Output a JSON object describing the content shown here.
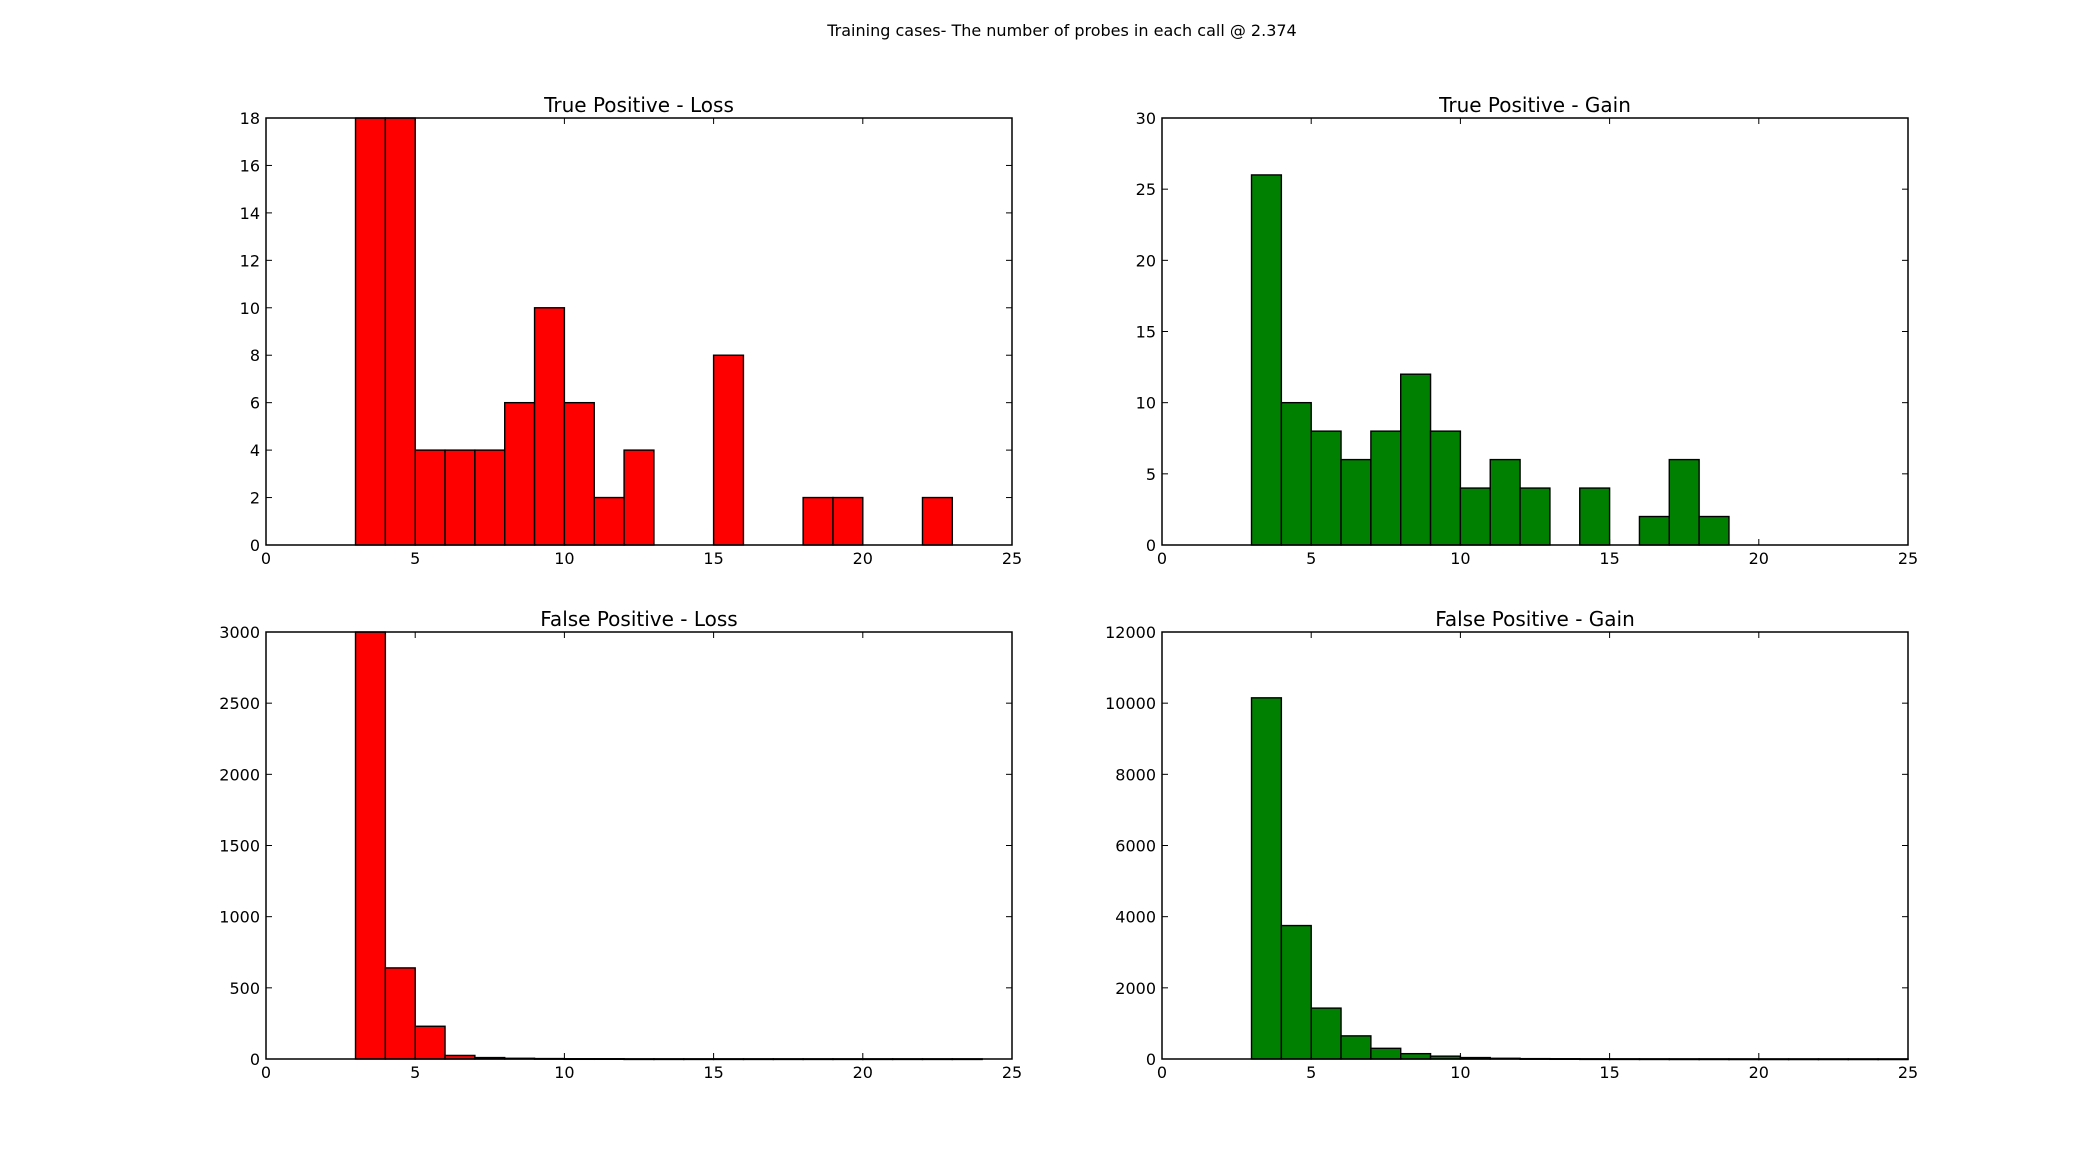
{
  "figure": {
    "suptitle": "Training cases- The number of probes in each call @ 2.374"
  },
  "chart_data": [
    {
      "type": "bar",
      "title": "True Positive - Loss",
      "color": "#ff0000",
      "bin_width": 1,
      "xlim": [
        0,
        25
      ],
      "ylim": [
        0,
        18
      ],
      "xticks": [
        0,
        5,
        10,
        15,
        20,
        25
      ],
      "yticks": [
        0,
        2,
        4,
        6,
        8,
        10,
        12,
        14,
        16,
        18
      ],
      "bins": [
        {
          "x": 3,
          "count": 18
        },
        {
          "x": 4,
          "count": 18
        },
        {
          "x": 5,
          "count": 4
        },
        {
          "x": 6,
          "count": 4
        },
        {
          "x": 7,
          "count": 4
        },
        {
          "x": 8,
          "count": 6
        },
        {
          "x": 9,
          "count": 10
        },
        {
          "x": 10,
          "count": 6
        },
        {
          "x": 11,
          "count": 2
        },
        {
          "x": 12,
          "count": 4
        },
        {
          "x": 13,
          "count": 0
        },
        {
          "x": 14,
          "count": 0
        },
        {
          "x": 15,
          "count": 8
        },
        {
          "x": 16,
          "count": 0
        },
        {
          "x": 17,
          "count": 0
        },
        {
          "x": 18,
          "count": 2
        },
        {
          "x": 19,
          "count": 2
        },
        {
          "x": 20,
          "count": 0
        },
        {
          "x": 21,
          "count": 0
        },
        {
          "x": 22,
          "count": 2
        }
      ]
    },
    {
      "type": "bar",
      "title": "True Positive - Gain",
      "color": "#008000",
      "bin_width": 1,
      "xlim": [
        0,
        25
      ],
      "ylim": [
        0,
        30
      ],
      "xticks": [
        0,
        5,
        10,
        15,
        20,
        25
      ],
      "yticks": [
        0,
        5,
        10,
        15,
        20,
        25,
        30
      ],
      "bins": [
        {
          "x": 3,
          "count": 26
        },
        {
          "x": 4,
          "count": 10
        },
        {
          "x": 5,
          "count": 8
        },
        {
          "x": 6,
          "count": 6
        },
        {
          "x": 7,
          "count": 8
        },
        {
          "x": 8,
          "count": 12
        },
        {
          "x": 9,
          "count": 8
        },
        {
          "x": 10,
          "count": 4
        },
        {
          "x": 11,
          "count": 6
        },
        {
          "x": 12,
          "count": 4
        },
        {
          "x": 13,
          "count": 0
        },
        {
          "x": 14,
          "count": 4
        },
        {
          "x": 15,
          "count": 0
        },
        {
          "x": 16,
          "count": 2
        },
        {
          "x": 17,
          "count": 6
        },
        {
          "x": 18,
          "count": 2
        }
      ]
    },
    {
      "type": "bar",
      "title": "False Positive - Loss",
      "color": "#ff0000",
      "bin_width": 1,
      "xlim": [
        0,
        25
      ],
      "ylim": [
        0,
        3000
      ],
      "xticks": [
        0,
        5,
        10,
        15,
        20,
        25
      ],
      "yticks": [
        0,
        500,
        1000,
        1500,
        2000,
        2500,
        3000
      ],
      "bins": [
        {
          "x": 3,
          "count": 3000
        },
        {
          "x": 4,
          "count": 640
        },
        {
          "x": 5,
          "count": 230
        },
        {
          "x": 6,
          "count": 25
        },
        {
          "x": 7,
          "count": 10
        },
        {
          "x": 8,
          "count": 5
        },
        {
          "x": 9,
          "count": 3
        },
        {
          "x": 10,
          "count": 2
        },
        {
          "x": 11,
          "count": 2
        },
        {
          "x": 12,
          "count": 1
        },
        {
          "x": 13,
          "count": 1
        },
        {
          "x": 14,
          "count": 1
        },
        {
          "x": 15,
          "count": 1
        },
        {
          "x": 16,
          "count": 1
        },
        {
          "x": 17,
          "count": 1
        },
        {
          "x": 18,
          "count": 1
        },
        {
          "x": 19,
          "count": 1
        },
        {
          "x": 20,
          "count": 1
        },
        {
          "x": 21,
          "count": 1
        },
        {
          "x": 22,
          "count": 1
        },
        {
          "x": 23,
          "count": 1
        }
      ]
    },
    {
      "type": "bar",
      "title": "False Positive - Gain",
      "color": "#008000",
      "bin_width": 1,
      "xlim": [
        0,
        25
      ],
      "ylim": [
        0,
        12000
      ],
      "xticks": [
        0,
        5,
        10,
        15,
        20,
        25
      ],
      "yticks": [
        0,
        2000,
        4000,
        6000,
        8000,
        10000,
        12000
      ],
      "bins": [
        {
          "x": 3,
          "count": 10150
        },
        {
          "x": 4,
          "count": 3750
        },
        {
          "x": 5,
          "count": 1430
        },
        {
          "x": 6,
          "count": 650
        },
        {
          "x": 7,
          "count": 300
        },
        {
          "x": 8,
          "count": 150
        },
        {
          "x": 9,
          "count": 80
        },
        {
          "x": 10,
          "count": 40
        },
        {
          "x": 11,
          "count": 20
        },
        {
          "x": 12,
          "count": 10
        },
        {
          "x": 13,
          "count": 8
        },
        {
          "x": 14,
          "count": 5
        },
        {
          "x": 15,
          "count": 4
        },
        {
          "x": 16,
          "count": 3
        },
        {
          "x": 17,
          "count": 2
        },
        {
          "x": 18,
          "count": 2
        },
        {
          "x": 19,
          "count": 1
        },
        {
          "x": 20,
          "count": 1
        },
        {
          "x": 21,
          "count": 1
        },
        {
          "x": 22,
          "count": 1
        },
        {
          "x": 23,
          "count": 1
        },
        {
          "x": 24,
          "count": 1
        }
      ]
    }
  ]
}
